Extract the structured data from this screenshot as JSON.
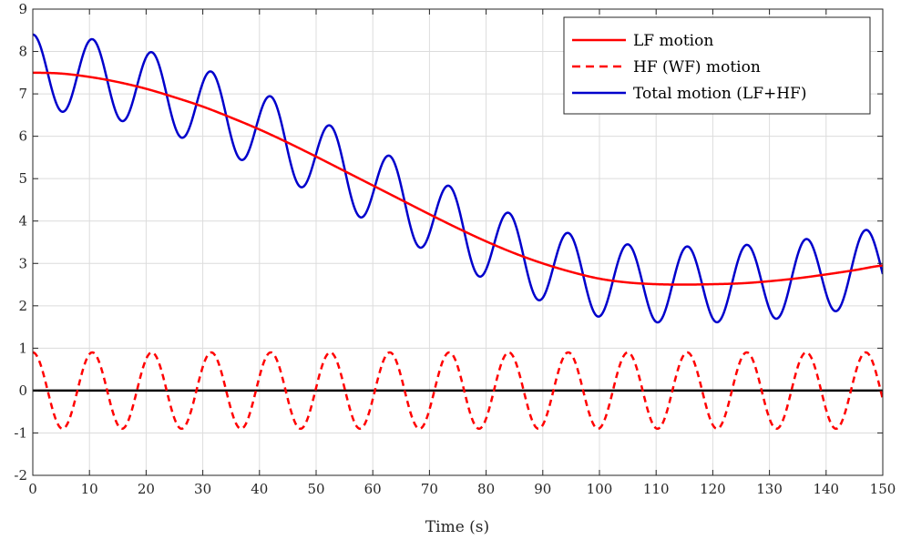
{
  "chart_data": {
    "type": "line",
    "xlabel": "Time (s)",
    "ylabel": "",
    "xlim": [
      0,
      150
    ],
    "ylim": [
      -2,
      9
    ],
    "xticks": [
      0,
      10,
      20,
      30,
      40,
      50,
      60,
      70,
      80,
      90,
      100,
      110,
      120,
      130,
      140,
      150
    ],
    "yticks": [
      -2,
      -1,
      0,
      1,
      2,
      3,
      4,
      5,
      6,
      7,
      8,
      9
    ],
    "grid": true,
    "legend_position": "top-right",
    "zero_line": 0,
    "series": [
      {
        "name": "LF motion",
        "color": "#ff0000",
        "style": "solid",
        "x": [
          0,
          5,
          10,
          15,
          20,
          25,
          30,
          35,
          40,
          45,
          50,
          55,
          60,
          65,
          70,
          75,
          80,
          85,
          90,
          95,
          100,
          105,
          110,
          115,
          120,
          125,
          130,
          135,
          140,
          145,
          150
        ],
        "values": [
          7.5,
          7.48,
          7.4,
          7.28,
          7.12,
          6.92,
          6.7,
          6.44,
          6.16,
          5.85,
          5.52,
          5.18,
          4.84,
          4.5,
          4.16,
          3.83,
          3.52,
          3.24,
          3.0,
          2.8,
          2.64,
          2.55,
          2.51,
          2.5,
          2.51,
          2.53,
          2.58,
          2.65,
          2.74,
          2.84,
          2.95
        ]
      },
      {
        "name": "HF (WF) motion",
        "color": "#ff0000",
        "style": "dashed",
        "amplitude": 0.9,
        "period": 10.5,
        "phase_at_zero": 0.9
      },
      {
        "name": "Total motion (LF+HF)",
        "color": "#0000cc",
        "style": "solid",
        "definition": "LF motion + HF (WF) motion"
      }
    ]
  }
}
